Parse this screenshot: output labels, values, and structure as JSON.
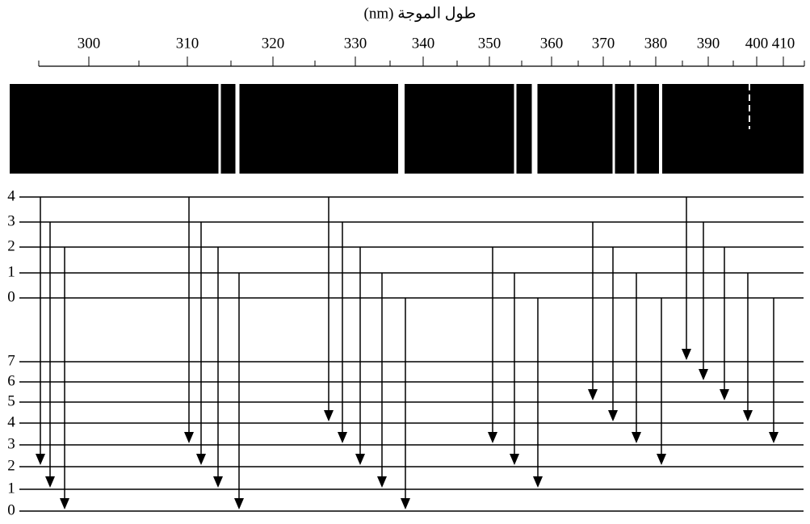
{
  "axis": {
    "title": "(nm) طول الموجة",
    "ticks": [
      "300",
      "310",
      "320",
      "330",
      "340",
      "350",
      "360",
      "370",
      "380",
      "390",
      "400",
      "410"
    ]
  },
  "upper_levels": [
    "4",
    "3",
    "2",
    "1",
    "0"
  ],
  "lower_levels": [
    "7",
    "6",
    "5",
    "4",
    "3",
    "2",
    "1",
    "0"
  ]
}
